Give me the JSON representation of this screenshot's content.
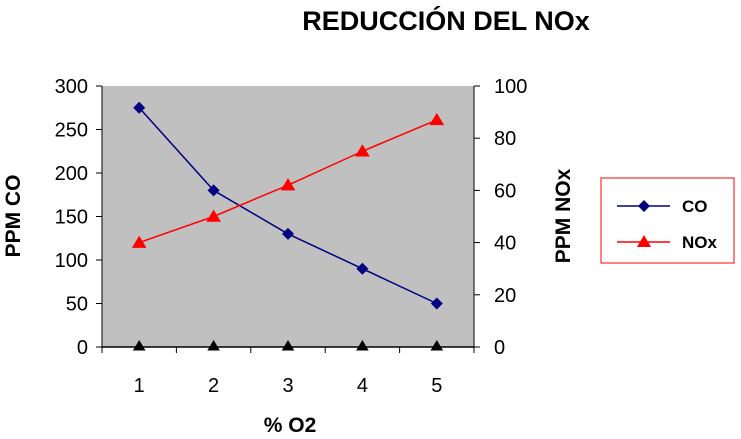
{
  "chart_data": {
    "type": "line",
    "title": "REDUCCIÓN DEL NOx",
    "xlabel": "% O2",
    "ylabel": "PPM CO",
    "y2label": "PPM NOx",
    "categories": [
      "1",
      "2",
      "3",
      "4",
      "5"
    ],
    "ylim": [
      0,
      300
    ],
    "y_ticks": [
      0,
      50,
      100,
      150,
      200,
      250,
      300
    ],
    "y2lim": [
      0,
      100
    ],
    "y2_ticks": [
      0,
      20,
      40,
      60,
      80,
      100
    ],
    "grid": false,
    "legend_position": "right",
    "plot_background": "#c0c0c0",
    "series": [
      {
        "name": "CO",
        "axis": "left",
        "marker": "diamond",
        "color": "#000080",
        "values": [
          275,
          180,
          130,
          90,
          50
        ]
      },
      {
        "name": "NOx",
        "axis": "right",
        "marker": "triangle",
        "color": "#ff0000",
        "values": [
          40,
          50,
          62,
          75,
          87
        ]
      }
    ],
    "baseline_marker": {
      "marker": "triangle",
      "color": "#000000",
      "values": [
        0,
        0,
        0,
        0,
        0
      ]
    }
  }
}
